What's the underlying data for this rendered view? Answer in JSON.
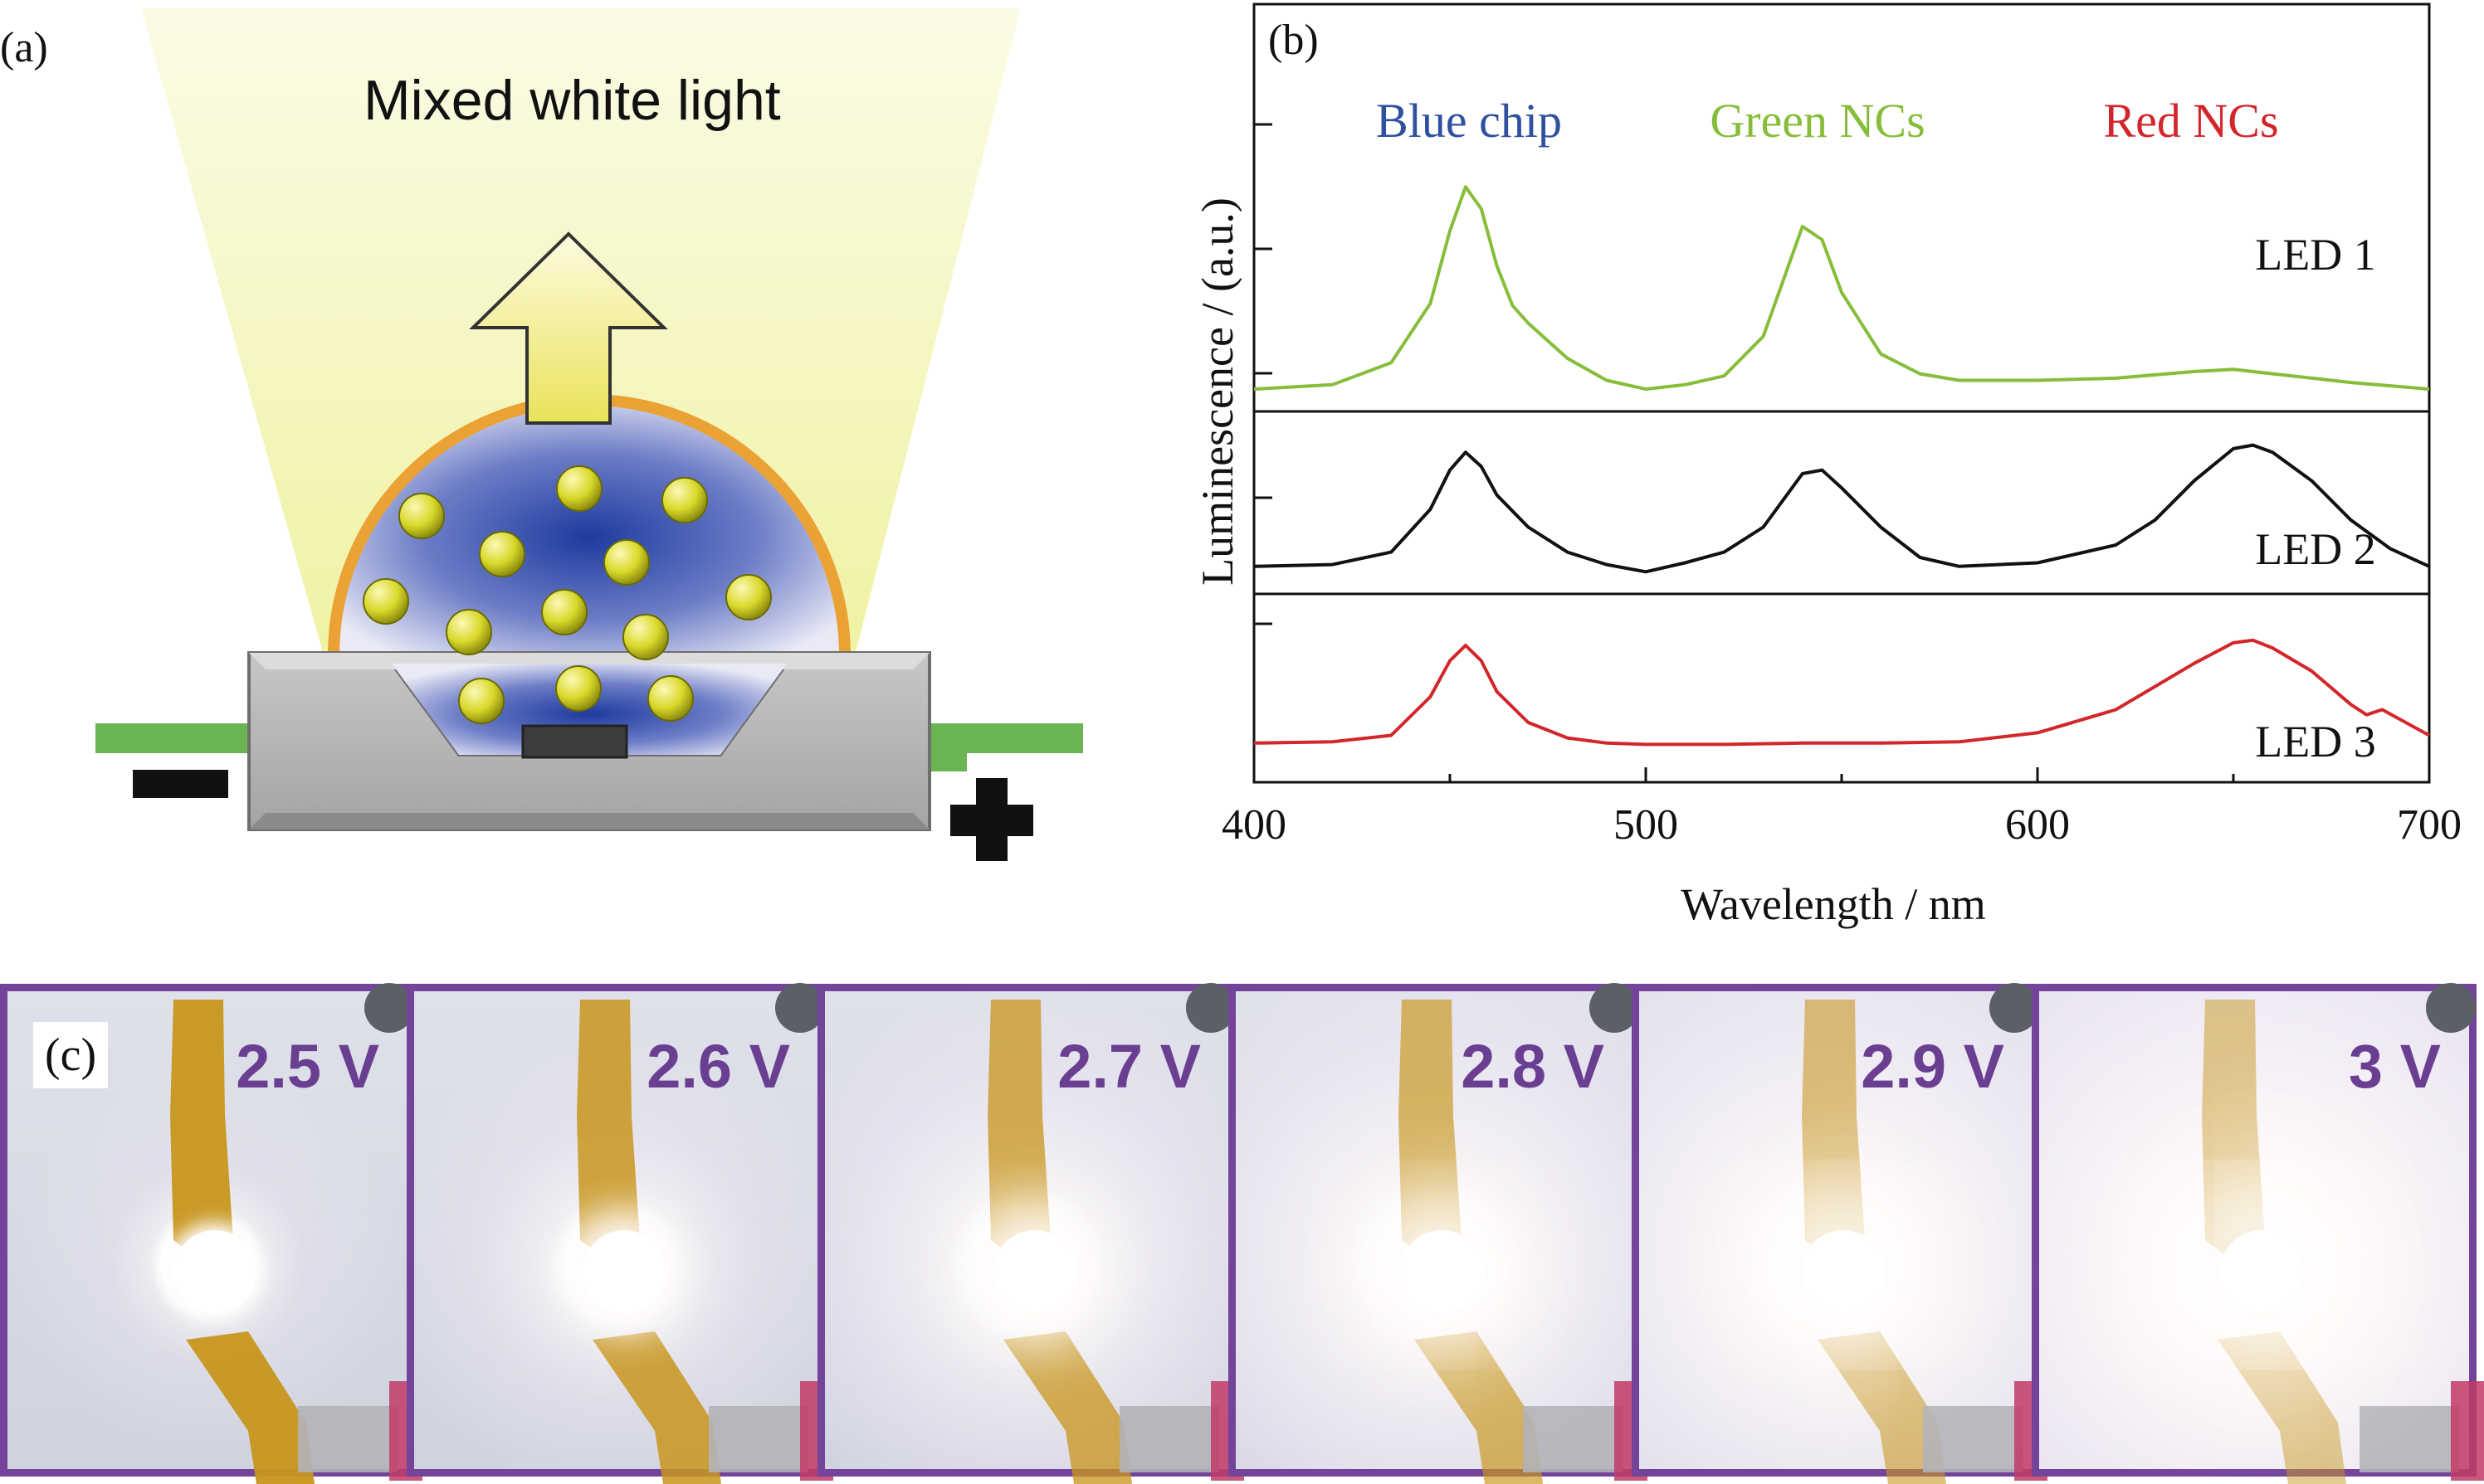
{
  "panels": {
    "a_label": "(a)",
    "b_label": "(b)",
    "c_label": "(c)"
  },
  "schematic": {
    "title": "Mixed white light",
    "minus_symbol": "minus-terminal",
    "plus_symbol": "plus-terminal"
  },
  "chart_data": {
    "type": "line",
    "xlabel": "Wavelength / nm",
    "ylabel": "Luminescence / (a.u.)",
    "xlim": [
      400,
      700
    ],
    "xticks": [
      "400",
      "500",
      "600",
      "700"
    ],
    "annotations": [
      {
        "text": "Blue chip",
        "color": "#2f4fa0"
      },
      {
        "text": "Green NCs",
        "color": "#86bd3a"
      },
      {
        "text": "Red NCs",
        "color": "#d2262b"
      }
    ],
    "series": [
      {
        "name": "LED 1",
        "color": "#86bd3a",
        "x": [
          400,
          420,
          435,
          445,
          450,
          454,
          458,
          462,
          466,
          470,
          480,
          490,
          500,
          510,
          520,
          530,
          535,
          540,
          545,
          550,
          560,
          570,
          580,
          600,
          620,
          640,
          650,
          660,
          680,
          700
        ],
        "y": [
          0.06,
          0.08,
          0.18,
          0.45,
          0.78,
          0.98,
          0.88,
          0.62,
          0.44,
          0.36,
          0.2,
          0.1,
          0.06,
          0.08,
          0.12,
          0.3,
          0.55,
          0.8,
          0.74,
          0.5,
          0.22,
          0.13,
          0.1,
          0.1,
          0.11,
          0.14,
          0.15,
          0.13,
          0.09,
          0.06
        ]
      },
      {
        "name": "LED 2",
        "color": "#111111",
        "x": [
          400,
          420,
          435,
          445,
          450,
          454,
          458,
          462,
          470,
          480,
          490,
          500,
          510,
          520,
          530,
          540,
          545,
          550,
          560,
          570,
          580,
          600,
          620,
          630,
          640,
          650,
          655,
          660,
          670,
          680,
          690,
          700
        ],
        "y": [
          0.08,
          0.09,
          0.16,
          0.4,
          0.62,
          0.72,
          0.64,
          0.48,
          0.3,
          0.16,
          0.09,
          0.05,
          0.1,
          0.16,
          0.3,
          0.6,
          0.62,
          0.52,
          0.3,
          0.13,
          0.08,
          0.1,
          0.2,
          0.34,
          0.56,
          0.74,
          0.76,
          0.72,
          0.56,
          0.34,
          0.18,
          0.08
        ]
      },
      {
        "name": "LED 3",
        "color": "#d2262b",
        "x": [
          400,
          420,
          435,
          445,
          450,
          454,
          458,
          462,
          470,
          480,
          490,
          500,
          520,
          540,
          560,
          580,
          600,
          620,
          630,
          640,
          650,
          655,
          660,
          670,
          680,
          684,
          688,
          700
        ],
        "y": [
          0.04,
          0.05,
          0.1,
          0.4,
          0.68,
          0.8,
          0.68,
          0.44,
          0.2,
          0.08,
          0.04,
          0.03,
          0.03,
          0.04,
          0.04,
          0.05,
          0.12,
          0.3,
          0.48,
          0.66,
          0.82,
          0.84,
          0.78,
          0.6,
          0.34,
          0.26,
          0.3,
          0.1
        ]
      }
    ]
  },
  "photos": {
    "voltages": [
      "2.5 V",
      "2.6 V",
      "2.7 V",
      "2.8 V",
      "2.9 V",
      "3 V"
    ]
  }
}
